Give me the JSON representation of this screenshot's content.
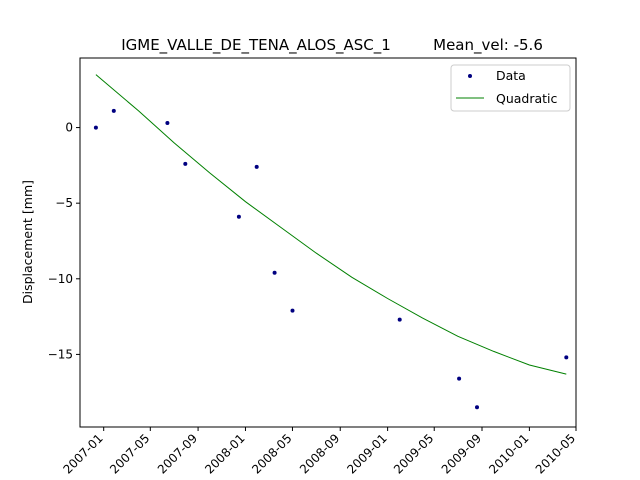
{
  "chart_data": {
    "type": "scatter",
    "title": "IGME_VALLE_DE_TENA_ALOS_ASC_1",
    "subtitle": "Mean_vel: -5.6",
    "xlabel": "",
    "ylabel": "Displacement [mm]",
    "xlim": [
      "2006-11-01",
      "2010-05-01"
    ],
    "ylim": [
      -19.8,
      4.6
    ],
    "x_ticks": [
      "2007-01",
      "2007-05",
      "2007-09",
      "2008-01",
      "2008-05",
      "2008-09",
      "2009-01",
      "2009-05",
      "2009-09",
      "2010-01",
      "2010-05"
    ],
    "y_ticks": [
      0,
      -5,
      -10,
      -15
    ],
    "grid": false,
    "legend_position": "top-right",
    "series": [
      {
        "name": "Data",
        "kind": "points",
        "color": "#000080",
        "x": [
          "2006-12-12",
          "2007-01-27",
          "2007-06-14",
          "2007-07-30",
          "2007-12-15",
          "2008-01-30",
          "2008-03-16",
          "2008-05-01",
          "2009-02-01",
          "2009-07-04",
          "2009-08-19",
          "2010-04-06"
        ],
        "y": [
          0.0,
          1.1,
          0.3,
          -2.4,
          -5.9,
          -2.6,
          -9.6,
          -12.1,
          -12.7,
          -16.6,
          -18.5,
          -15.2
        ]
      },
      {
        "name": "Quadratic",
        "kind": "line",
        "color": "#008000",
        "x": [
          "2006-12-12",
          "2007-04-01",
          "2007-07-01",
          "2007-10-01",
          "2008-01-01",
          "2008-04-01",
          "2008-07-01",
          "2008-10-01",
          "2009-01-01",
          "2009-04-01",
          "2009-07-01",
          "2009-10-01",
          "2010-01-01",
          "2010-04-06"
        ],
        "y": [
          3.5,
          1.1,
          -1.0,
          -3.0,
          -4.9,
          -6.6,
          -8.3,
          -9.9,
          -11.3,
          -12.6,
          -13.8,
          -14.8,
          -15.7,
          -16.3
        ]
      }
    ]
  }
}
